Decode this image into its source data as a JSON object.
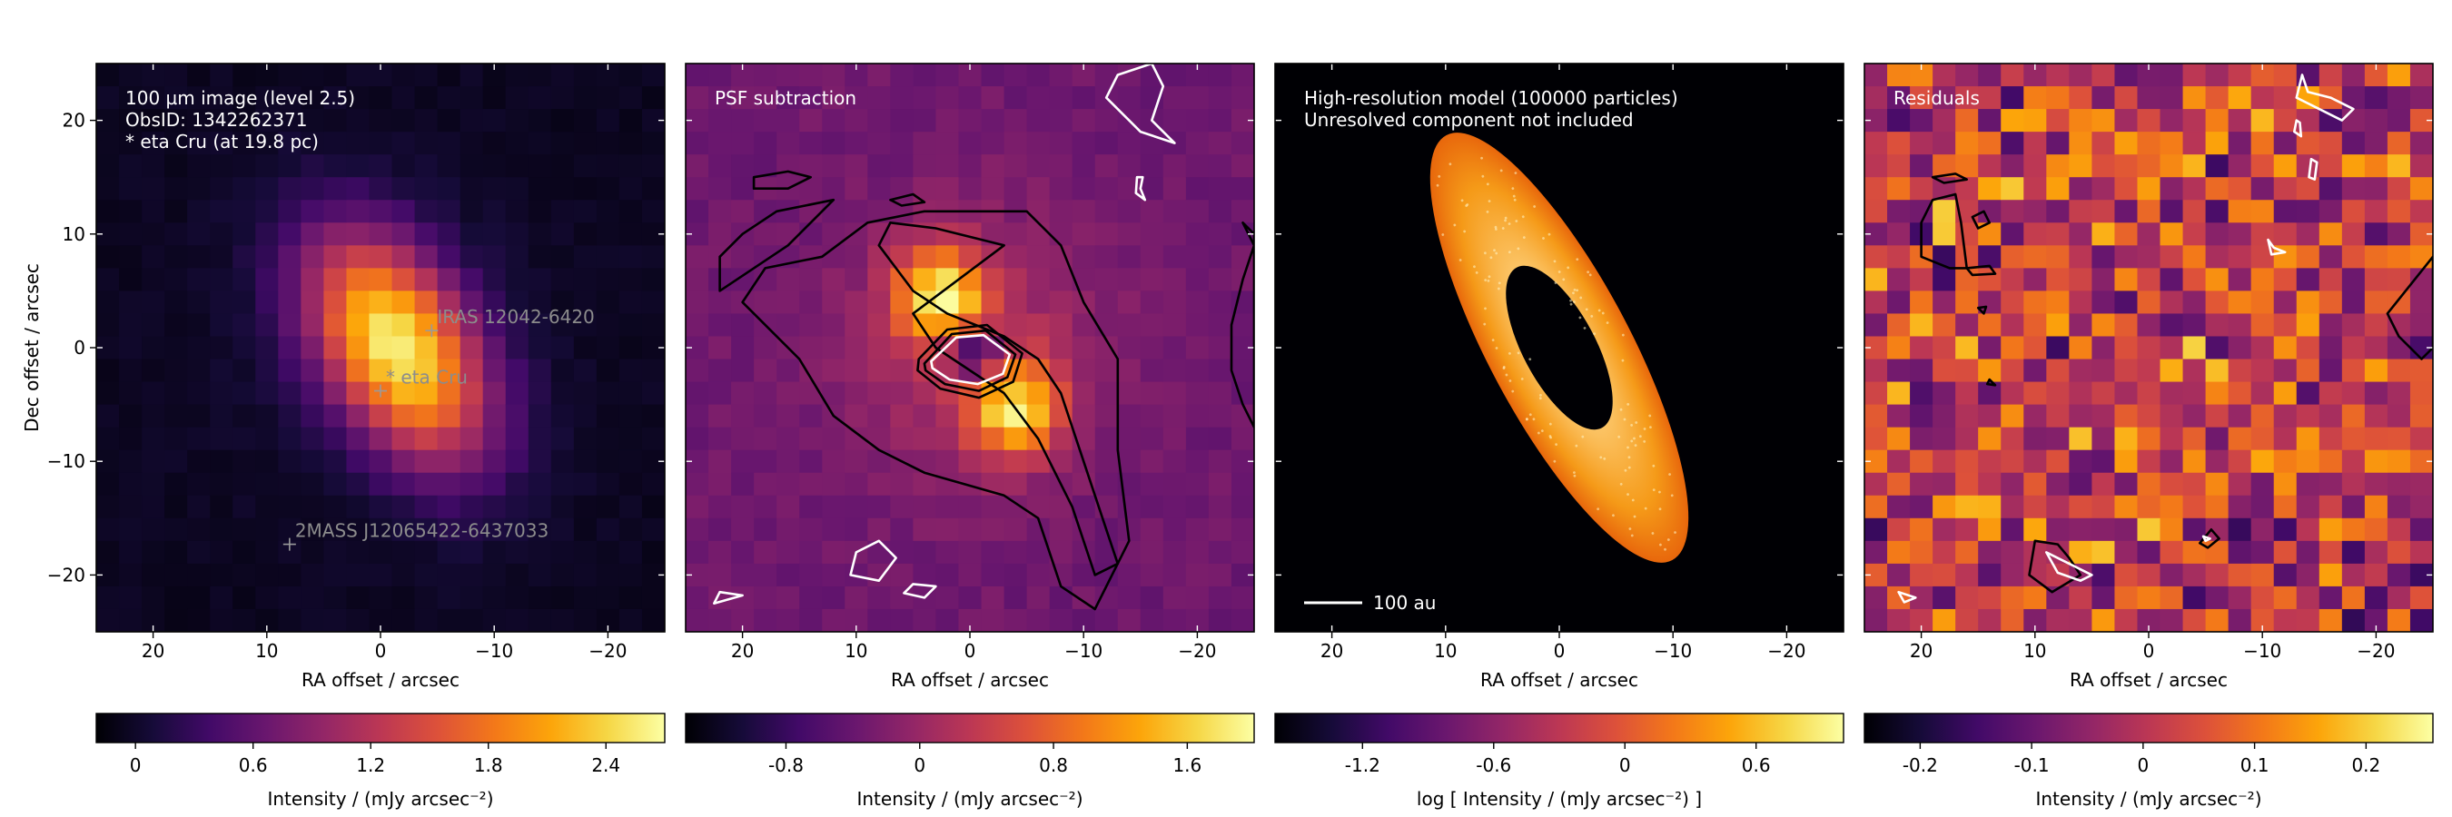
{
  "chart_data": [
    {
      "type": "heatmap",
      "panel": "observation",
      "annotations": [
        "100 µm image (level 2.5)",
        "ObsID: 1342262371",
        "* eta Cru (at 19.8 pc)"
      ],
      "xlabel": "RA offset / arcsec",
      "ylabel": "Dec offset / arcsec",
      "xlim": [
        25,
        -25
      ],
      "ylim": [
        -25,
        25
      ],
      "x_ticks": [
        20,
        10,
        0,
        -10,
        -20
      ],
      "x_tick_labels": [
        "20",
        "10",
        "0",
        "−10",
        "−20"
      ],
      "y_ticks": [
        20,
        10,
        0,
        -10,
        -20
      ],
      "y_tick_labels": [
        "20",
        "10",
        "0",
        "−10",
        "−20"
      ],
      "colormap": "inferno",
      "sources": [
        {
          "label": "IRAS 12042-6420",
          "x": -4.5,
          "y": 1.5
        },
        {
          "label": "* eta Cru",
          "x": 0,
          "y": -3.8
        },
        {
          "label": "2MASS J12065422-6437033",
          "x": 8,
          "y": -17.3
        }
      ],
      "colorbar": {
        "label": "Intensity / (mJy arcsec⁻²)",
        "ticks": [
          "0",
          "0.6",
          "1.2",
          "1.8",
          "2.4"
        ],
        "tick_values": [
          0,
          0.6,
          1.2,
          1.8,
          2.4
        ],
        "range": [
          -0.2,
          2.7
        ]
      }
    },
    {
      "type": "heatmap",
      "panel": "psf_subtraction",
      "annotations": [
        "PSF subtraction"
      ],
      "xlabel": "RA offset / arcsec",
      "xlim": [
        25,
        -25
      ],
      "ylim": [
        -25,
        25
      ],
      "x_ticks": [
        20,
        10,
        0,
        -10,
        -20
      ],
      "x_tick_labels": [
        "20",
        "10",
        "0",
        "−10",
        "−20"
      ],
      "colormap": "inferno",
      "colorbar": {
        "label": "Intensity / (mJy arcsec⁻²)",
        "ticks": [
          "-0.8",
          "0",
          "0.8",
          "1.6"
        ],
        "tick_values": [
          -0.8,
          0,
          0.8,
          1.6
        ],
        "range": [
          -1.4,
          2.0
        ]
      }
    },
    {
      "type": "heatmap",
      "panel": "model",
      "annotations": [
        "High-resolution model (100000 particles)",
        "Unresolved component not included"
      ],
      "scalebar_label": "100 au",
      "xlabel": "RA offset / arcsec",
      "xlim": [
        25,
        -25
      ],
      "ylim": [
        -25,
        25
      ],
      "x_ticks": [
        20,
        10,
        0,
        -10,
        -20
      ],
      "x_tick_labels": [
        "20",
        "10",
        "0",
        "−10",
        "−20"
      ],
      "colormap": "inferno",
      "colorbar": {
        "label": "log [ Intensity / (mJy arcsec⁻²) ]",
        "ticks": [
          "-1.2",
          "-0.6",
          "0",
          "0.6"
        ],
        "tick_values": [
          -1.2,
          -0.6,
          0,
          0.6
        ],
        "range": [
          -1.6,
          1.0
        ]
      }
    },
    {
      "type": "heatmap",
      "panel": "residuals",
      "annotations": [
        "Residuals"
      ],
      "xlabel": "RA offset / arcsec",
      "xlim": [
        25,
        -25
      ],
      "ylim": [
        -25,
        25
      ],
      "x_ticks": [
        20,
        10,
        0,
        -10,
        -20
      ],
      "x_tick_labels": [
        "20",
        "10",
        "0",
        "−10",
        "−20"
      ],
      "colormap": "inferno",
      "colorbar": {
        "label": "Intensity / (mJy arcsec⁻²)",
        "ticks": [
          "-0.2",
          "-0.1",
          "0",
          "0.1",
          "0.2"
        ],
        "tick_values": [
          -0.2,
          -0.1,
          0,
          0.1,
          0.2
        ],
        "range": [
          -0.25,
          0.26
        ]
      }
    }
  ]
}
